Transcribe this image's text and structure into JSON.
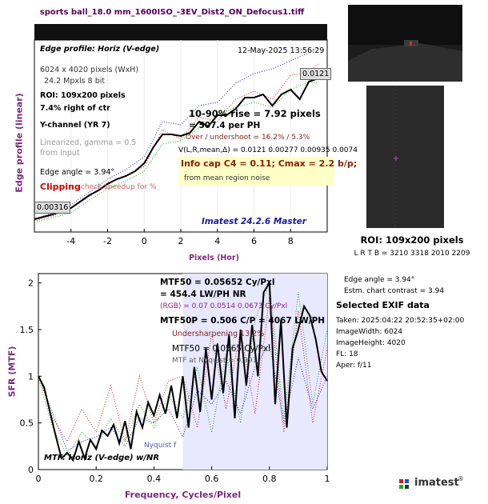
{
  "window_title": "sports ball_18.0 mm_1600ISO_-3EV_Dist2_ON_Defocus1.tiff",
  "edge_panel": {
    "title": "Edge profile: Horiz (V-edge)",
    "date": "12-May-2025 13:56:29",
    "image_size": "6024 x 4020 pixels (WxH)",
    "mpxls": "24.2 Mpxls   8 bit",
    "roi": "ROI:  109x200 pixels",
    "roi_pos": "7.4% right of ctr",
    "channel": "Y-channel  (YR 7)",
    "linearized_1": "Linearized, gamma = 0.5",
    "linearized_2": "from input",
    "edge_angle": "Edge angle = 3.94°",
    "clipping": "Clipping",
    "clipping_note": "check speedup for %",
    "low_value": "0.00316",
    "high_value": "0.0121",
    "rise": "10-90% rise = 7.92 pixels",
    "per_ph": "=  507.4 per PH",
    "overshoot": "Over / undershoot = 16.2% / 5.3%",
    "vlr": "V(L,R,mean,Δ) = 0.0121   0.00277   0.00935  0.0074",
    "info_cap": "Info cap C4 = 0.11;  Cmax = 2.2 b/p;",
    "noise_note": "from mean region noise",
    "version": "Imatest 24.2.6 Master",
    "xlabel": "Pixels (Hor)",
    "ylabel": "Edge profile (linear)"
  },
  "mtf_panel": {
    "mtf50": "MTF50 = 0.05652 Cy/Pxl",
    "lwph": "= 454.4 LW/PH  NR",
    "rgb": "(RGB) = 0.07  0.0514  0.0673 Cy/Pxl",
    "mtf50p": "MTF50P = 0.506 C/P = 4067 LW/PH",
    "undersharpening": "Undersharpening 13.2%",
    "mtf50_2": "MTF50 = 0.0565 Cy/Pxl",
    "nyquist_note": "MTF at Nyquist = 0.991",
    "nyquist_label": "Nyquist f",
    "footer": "MTF: Horiz (V-edge) w/NR",
    "xlabel": "Frequency, Cycles/Pixel",
    "ylabel": "SFR (MTF)"
  },
  "right_panel": {
    "roi_title": "ROI:  109x200 pixels",
    "roi_coords": "L R  T B = 3210 3318  2010 2209",
    "edge_angle": "Edge angle = 3.94°",
    "contrast": "Estm. chart contrast = 3.94",
    "exif_header": "Selected EXIF data",
    "exif": [
      "Taken: 2025:04:22 20:52:35+02:00",
      "ImageWidth:  6024",
      "ImageHeight:  4020",
      "FL:    18",
      "Aper:  f/11"
    ]
  },
  "logo": "imatest",
  "logo_mark": "®",
  "colors": {
    "black_curve": "#000000",
    "red": "#cc2222",
    "green": "#22aa22",
    "blue": "#2222cc",
    "fill": "#e8e8ff",
    "title": "#550055"
  },
  "chart_data": [
    {
      "type": "line",
      "xlabel": "Pixels (Hor)",
      "ylabel": "Edge profile (linear)",
      "xlim": [
        -6,
        10
      ],
      "ylim": [
        0.0025,
        0.0145
      ],
      "xticks": [
        -4,
        -2,
        0,
        2,
        4,
        6,
        8
      ],
      "xtick_labels": [
        "-4",
        "-2",
        "0",
        "2",
        "4",
        "6",
        "8"
      ],
      "series": [
        {
          "x": [
            -6,
            -5,
            -4,
            -3.5,
            -3,
            -2.5,
            -2,
            -1.5,
            -1,
            -0.5,
            0,
            0.5,
            1,
            1.5,
            2,
            2.5,
            3,
            3.5,
            4,
            4.5,
            5,
            5.5,
            6,
            6.5,
            7,
            7.5,
            8,
            8.5,
            9,
            9.5
          ],
          "y": [
            0.0033,
            0.0036,
            0.004,
            0.0044,
            0.0048,
            0.0051,
            0.0055,
            0.0058,
            0.006,
            0.0063,
            0.0068,
            0.0078,
            0.0086,
            0.0086,
            0.0085,
            0.0087,
            0.0094,
            0.0091,
            0.0098,
            0.0098,
            0.0102,
            0.0109,
            0.0109,
            0.0111,
            0.0104,
            0.0111,
            0.0114,
            0.0108,
            0.0119,
            0.0121
          ]
        },
        {
          "x": [
            -6,
            -5,
            -4,
            -3,
            -2,
            -1,
            0,
            1,
            2,
            3,
            4,
            5,
            6,
            7,
            8,
            9,
            9.5
          ],
          "y": [
            0.0032,
            0.0035,
            0.004,
            0.0047,
            0.0056,
            0.006,
            0.0066,
            0.0089,
            0.0083,
            0.0097,
            0.0094,
            0.0108,
            0.0113,
            0.0108,
            0.0123,
            0.0125,
            0.013
          ]
        },
        {
          "x": [
            -6,
            -5,
            -4,
            -3,
            -2,
            -1,
            0,
            1,
            2,
            3,
            4,
            5,
            6,
            7,
            8,
            9,
            9.5
          ],
          "y": [
            0.0031,
            0.0034,
            0.0037,
            0.0045,
            0.0052,
            0.0057,
            0.0063,
            0.008,
            0.0082,
            0.009,
            0.0098,
            0.0103,
            0.0106,
            0.0103,
            0.0114,
            0.0119,
            0.0118
          ]
        },
        {
          "x": [
            -6,
            -5,
            -4,
            -3,
            -2,
            -1,
            0,
            1,
            2,
            3,
            4,
            5,
            6,
            7,
            8,
            9,
            9.5
          ],
          "y": [
            0.0033,
            0.0037,
            0.0042,
            0.005,
            0.0058,
            0.0064,
            0.0072,
            0.0094,
            0.0092,
            0.0104,
            0.0106,
            0.0118,
            0.0124,
            0.0127,
            0.0132,
            0.0137,
            0.014
          ]
        }
      ]
    },
    {
      "type": "line",
      "xlabel": "Frequency, Cycles/Pixel",
      "ylabel": "SFR (MTF)",
      "xlim": [
        0,
        1
      ],
      "ylim": [
        0,
        2.1
      ],
      "xticks": [
        0,
        0.2,
        0.4,
        0.6,
        0.8,
        1
      ],
      "xtick_labels": [
        "0",
        "0.2",
        "0.4",
        "0.6",
        "0.8",
        "1"
      ],
      "yticks": [
        0,
        0.5,
        1,
        1.5,
        2
      ],
      "ytick_labels": [
        "0",
        "0.5",
        "1",
        "1.5",
        "2"
      ],
      "series": [
        {
          "x": [
            0,
            0.02,
            0.04,
            0.06,
            0.08,
            0.1,
            0.12,
            0.14,
            0.16,
            0.18,
            0.2,
            0.22,
            0.24,
            0.26,
            0.28,
            0.3,
            0.32,
            0.34,
            0.36,
            0.38,
            0.4,
            0.42,
            0.44,
            0.46,
            0.48,
            0.5,
            0.52,
            0.54,
            0.56,
            0.58,
            0.6,
            0.62,
            0.64,
            0.66,
            0.68,
            0.7,
            0.72,
            0.74,
            0.76,
            0.78,
            0.8,
            0.82,
            0.84,
            0.86,
            0.88,
            0.9,
            0.92,
            0.94,
            0.96,
            0.98,
            1
          ],
          "y": [
            1.0,
            0.88,
            0.62,
            0.36,
            0.12,
            0.18,
            0.1,
            0.3,
            0.12,
            0.32,
            0.22,
            0.42,
            0.36,
            0.48,
            0.28,
            0.52,
            0.22,
            0.62,
            0.45,
            0.72,
            0.58,
            0.8,
            0.6,
            0.9,
            0.55,
            1.0,
            0.45,
            1.1,
            0.62,
            1.3,
            0.75,
            1.35,
            0.82,
            1.45,
            0.55,
            1.5,
            0.9,
            1.55,
            1.0,
            1.9,
            2.0,
            0.7,
            1.6,
            0.45,
            1.3,
            1.5,
            1.75,
            1.65,
            1.4,
            1.05,
            0.95
          ]
        },
        {
          "x": [
            0,
            0.05,
            0.1,
            0.15,
            0.2,
            0.25,
            0.3,
            0.35,
            0.4,
            0.45,
            0.5,
            0.55,
            0.6,
            0.65,
            0.7,
            0.75,
            0.8,
            0.85,
            0.9,
            0.95,
            1
          ],
          "y": [
            1.02,
            0.55,
            0.3,
            0.65,
            0.4,
            0.9,
            0.3,
            1.0,
            0.5,
            0.95,
            1.0,
            0.45,
            1.45,
            0.65,
            1.5,
            0.6,
            1.85,
            0.4,
            1.7,
            0.5,
            1.3
          ]
        },
        {
          "x": [
            0,
            0.05,
            0.1,
            0.15,
            0.2,
            0.25,
            0.3,
            0.35,
            0.4,
            0.45,
            0.5,
            0.55,
            0.6,
            0.65,
            0.7,
            0.75,
            0.8,
            0.85,
            0.9,
            0.95,
            1
          ],
          "y": [
            0.98,
            0.45,
            0.15,
            0.4,
            0.25,
            0.55,
            0.3,
            0.7,
            0.45,
            0.8,
            0.55,
            1.1,
            0.4,
            1.25,
            0.5,
            1.6,
            2.0,
            0.55,
            1.9,
            0.7,
            1.5
          ]
        },
        {
          "x": [
            0,
            0.05,
            0.1,
            0.15,
            0.2,
            0.25,
            0.3,
            0.35,
            0.4,
            0.45,
            0.5,
            0.55,
            0.6,
            0.65,
            0.7,
            0.75,
            0.8,
            0.85,
            0.9,
            0.95,
            1
          ],
          "y": [
            1.0,
            0.6,
            0.2,
            0.3,
            0.35,
            0.45,
            0.25,
            0.55,
            0.5,
            0.65,
            0.35,
            0.85,
            0.7,
            0.95,
            0.6,
            1.1,
            1.35,
            0.5,
            1.2,
            0.65,
            1.0
          ]
        }
      ]
    }
  ]
}
